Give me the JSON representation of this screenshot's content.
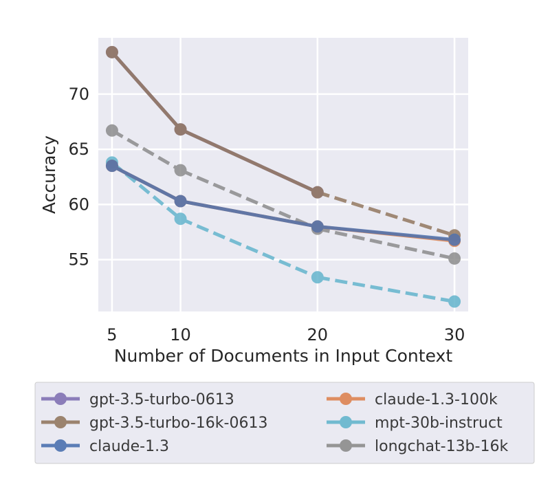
{
  "chart_data": {
    "type": "line",
    "xlabel": "Number of Documents in Input Context",
    "ylabel": "Accuracy",
    "x": [
      5,
      10,
      20,
      30
    ],
    "x_ticks": [
      "5",
      "10",
      "20",
      "30"
    ],
    "y_ticks": [
      "55",
      "60",
      "65",
      "70"
    ],
    "xlim": [
      4,
      31
    ],
    "ylim": [
      50.3,
      75.1
    ],
    "grid": true,
    "legend_position": "below",
    "series": [
      {
        "name": "gpt-3.5-turbo-0613",
        "color": "#8172b3",
        "dash": "solid",
        "values": [
          73.8,
          66.8,
          61.1,
          null
        ]
      },
      {
        "name": "gpt-3.5-turbo-16k-0613",
        "color": "#937860",
        "dash": "solid-then-dashed",
        "values": [
          73.8,
          66.8,
          61.1,
          57.2
        ]
      },
      {
        "name": "claude-1.3",
        "color": "#4c72b0",
        "dash": "solid",
        "values": [
          63.5,
          60.3,
          58.0,
          56.8
        ]
      },
      {
        "name": "claude-1.3-100k",
        "color": "#dd8452",
        "dash": "solid",
        "values": [
          63.5,
          60.3,
          58.0,
          56.7
        ]
      },
      {
        "name": "mpt-30b-instruct",
        "color": "#64b5cd",
        "dash": "dashed",
        "values": [
          63.8,
          58.7,
          53.4,
          51.2
        ]
      },
      {
        "name": "longchat-13b-16k",
        "color": "#8c8c8c",
        "dash": "dashed",
        "values": [
          66.7,
          63.1,
          57.8,
          55.1
        ]
      }
    ]
  }
}
